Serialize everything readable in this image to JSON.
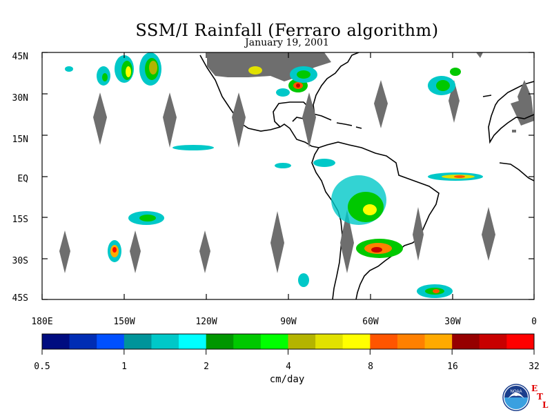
{
  "title": "SSM/I Rainfall (Ferraro algorithm)",
  "subtitle": "January 19, 2001",
  "map": {
    "lat_labels": [
      "45N",
      "30N",
      "15N",
      "EQ",
      "15S",
      "30S",
      "45S"
    ],
    "lon_labels": [
      "180E",
      "150W",
      "120W",
      "90W",
      "60W",
      "30W",
      "0"
    ],
    "lat_range": [
      -45,
      45
    ],
    "lon_range": [
      -180,
      0
    ],
    "land_color": "#000000",
    "missing_data_color": "#6e6e6e",
    "missing_swath_gaps_lon": [
      -160,
      -134,
      -109,
      -83,
      -57,
      -29,
      -4,
      -170,
      -145,
      -120,
      -94,
      -68,
      -42,
      -17
    ]
  },
  "colorbar": {
    "colors": [
      "#000c80",
      "#002db4",
      "#0050ff",
      "#00949a",
      "#00c8c8",
      "#00ffff",
      "#009600",
      "#00c800",
      "#00ff00",
      "#b4b400",
      "#e1e100",
      "#ffff00",
      "#ff5500",
      "#ff8000",
      "#ffaa00",
      "#960000",
      "#c80000",
      "#ff0000"
    ],
    "tick_labels": [
      "0.5",
      "1",
      "2",
      "4",
      "8",
      "16",
      "32"
    ],
    "units": "cm/day"
  },
  "logo": {
    "name": "NOAA",
    "etl_letters": [
      "E",
      "T",
      "L"
    ]
  }
}
